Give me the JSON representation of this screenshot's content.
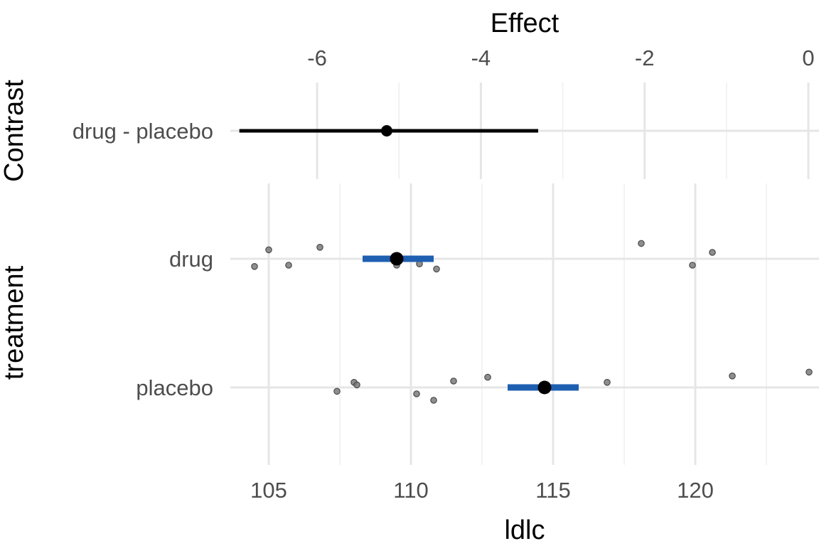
{
  "chart_data": [
    {
      "type": "interval",
      "panel": "contrast",
      "xlabel": "Effect",
      "ylabel": "Contrast",
      "xlim": [
        -7.06,
        0.13
      ],
      "x_ticks": [
        "-6",
        "-4",
        "-2",
        "0"
      ],
      "x_tick_values": [
        -6,
        -4,
        -2,
        0
      ],
      "categories": [
        "drug - placebo"
      ],
      "estimate": [
        -5.15
      ],
      "ci": [
        [
          -6.95,
          -3.3
        ]
      ],
      "colors": {
        "estimate": "#000000",
        "interval": "#000000"
      },
      "grid": true
    },
    {
      "type": "scatter",
      "panel": "treatment",
      "xlabel": "ldlc",
      "ylabel": "treatment",
      "xlim": [
        103.65,
        124.35
      ],
      "x_ticks": [
        "105",
        "110",
        "115",
        "120"
      ],
      "x_tick_values": [
        105,
        110,
        115,
        120
      ],
      "categories": [
        "drug",
        "placebo"
      ],
      "means": [
        109.5,
        114.7
      ],
      "ci": [
        [
          108.3,
          110.8
        ],
        [
          113.4,
          115.9
        ]
      ],
      "points": [
        {
          "group": "drug",
          "x": [
            104.5,
            105.0,
            105.7,
            106.8,
            109.5,
            110.3,
            110.9,
            118.1,
            119.9,
            120.6
          ],
          "jitter": [
            0.06,
            -0.07,
            0.05,
            -0.09,
            0.05,
            0.04,
            0.08,
            -0.12,
            0.05,
            -0.05
          ]
        },
        {
          "group": "placebo",
          "x": [
            107.4,
            108.0,
            108.1,
            110.2,
            110.8,
            111.5,
            112.7,
            116.9,
            121.3,
            124.0
          ],
          "jitter": [
            0.03,
            -0.04,
            -0.02,
            0.05,
            0.1,
            -0.05,
            -0.08,
            -0.04,
            -0.09,
            -0.12
          ]
        }
      ],
      "colors": {
        "mean": "#000000",
        "interval": "#1f5fb1",
        "points": "#7a7a7a"
      },
      "grid": true
    }
  ]
}
